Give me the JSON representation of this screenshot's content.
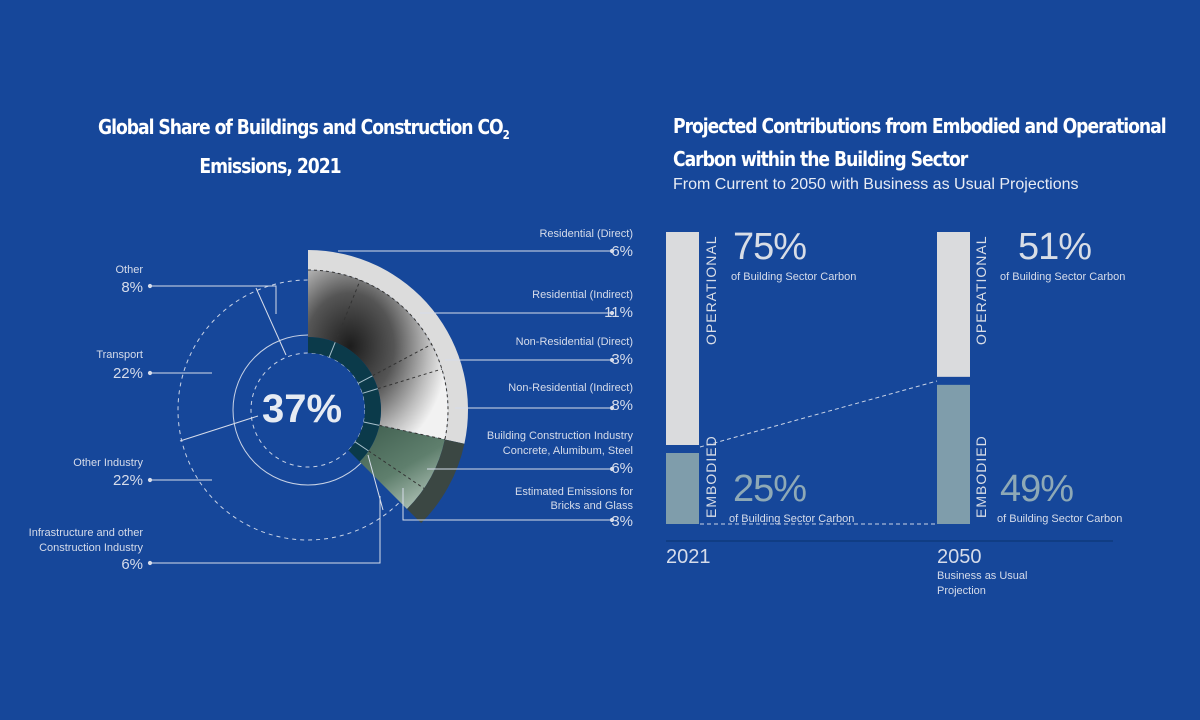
{
  "colors": {
    "background": "#16479a",
    "operational": "#dadbdd",
    "embodied": "#7f9dab",
    "inner_ring": "#0b3a4a",
    "green": "#4e6c5c",
    "gray_band": "#dcdcdc"
  },
  "left": {
    "title_line1": "Global Share of Buildings and Construction CO",
    "title_sub": "2",
    "title_line2": "Emissions, 2021",
    "center_value": "37%"
  },
  "right": {
    "title_line1": "Projected Contributions from Embodied and Operational",
    "title_line2": "Carbon within the Building Sector",
    "subtitle": "From Current to 2050 with Business as Usual Projections"
  },
  "chart_data": [
    {
      "type": "pie",
      "title": "Global Share of Buildings and Construction CO2 Emissions, 2021",
      "center_label": "37%",
      "slices": [
        {
          "label": "Residential (Direct)",
          "value": 6,
          "display": "6%"
        },
        {
          "label": "Residential (Indirect)",
          "value": 11,
          "display": "11%"
        },
        {
          "label": "Non-Residential (Direct)",
          "value": 3,
          "display": "3%"
        },
        {
          "label": "Non-Residential (Indirect)",
          "value": 8,
          "display": "8%"
        },
        {
          "label": "Building Construction Industry",
          "label2": "Concrete, Alumibum, Steel",
          "value": 6,
          "display": "6%"
        },
        {
          "label": "Estimated Emissions for",
          "label2": "Bricks and Glass",
          "value": 3,
          "display": "3%"
        },
        {
          "label": "Other",
          "value": 8,
          "display": "8%"
        },
        {
          "label": "Transport",
          "value": 22,
          "display": "22%"
        },
        {
          "label": "Other Industry",
          "value": 22,
          "display": "22%"
        },
        {
          "label": "Infrastructure and other",
          "label2": "Construction Industry",
          "value": 6,
          "display": "6%"
        }
      ]
    },
    {
      "type": "bar",
      "stacked": true,
      "title": "Projected Contributions from Embodied and Operational Carbon within the Building Sector",
      "categories": [
        "2021",
        "2050"
      ],
      "category_notes": [
        "",
        "Business as Usual Projection"
      ],
      "series": [
        {
          "name": "OPERATIONAL",
          "values": [
            75,
            51
          ],
          "display": [
            "75%",
            "51%"
          ]
        },
        {
          "name": "EMBODIED",
          "values": [
            25,
            49
          ],
          "display": [
            "25%",
            "49%"
          ]
        }
      ],
      "value_note": "of Building Sector Carbon",
      "ylim": [
        0,
        100
      ]
    }
  ]
}
